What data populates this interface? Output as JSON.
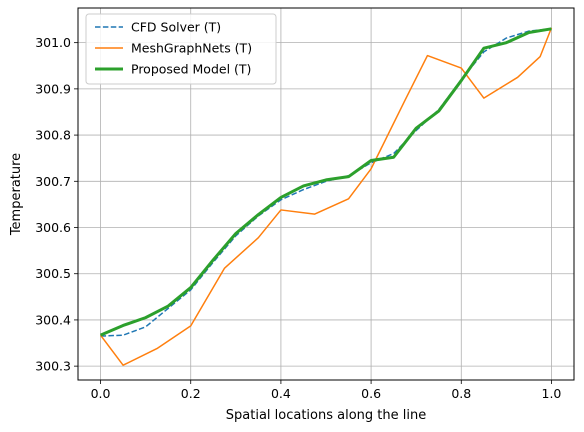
{
  "chart_data": {
    "type": "line",
    "title": "",
    "xlabel": "Spatial locations along the line",
    "ylabel": "Temperature",
    "xlim": [
      -0.05,
      1.05
    ],
    "ylim": [
      300.27,
      301.075
    ],
    "xticks": [
      0.0,
      0.2,
      0.4,
      0.6,
      0.8,
      1.0
    ],
    "xtick_labels": [
      "0.0",
      "0.2",
      "0.4",
      "0.6",
      "0.8",
      "1.0"
    ],
    "yticks": [
      300.3,
      300.4,
      300.5,
      300.6,
      300.7,
      300.8,
      300.9,
      301.0
    ],
    "ytick_labels": [
      "300.3",
      "300.4",
      "300.5",
      "300.6",
      "300.7",
      "300.8",
      "300.9",
      "301.0"
    ],
    "grid": true,
    "legend_position": "top-left",
    "series": [
      {
        "name": "CFD Solver (T)",
        "color": "#1f77b4",
        "style": "dashed",
        "width": 1.5,
        "x": [
          0.0,
          0.05,
          0.1,
          0.15,
          0.2,
          0.25,
          0.3,
          0.35,
          0.4,
          0.45,
          0.5,
          0.55,
          0.6,
          0.65,
          0.7,
          0.75,
          0.8,
          0.85,
          0.9,
          0.95,
          1.0
        ],
        "y": [
          300.365,
          300.367,
          300.385,
          300.425,
          300.465,
          300.525,
          300.582,
          300.625,
          300.66,
          300.682,
          300.7,
          300.712,
          300.74,
          300.76,
          300.81,
          300.855,
          300.92,
          300.98,
          301.01,
          301.025,
          301.03
        ]
      },
      {
        "name": "MeshGraphNets (T)",
        "color": "#ff7f0e",
        "style": "solid",
        "width": 1.5,
        "x": [
          0.0,
          0.05,
          0.125,
          0.2,
          0.275,
          0.35,
          0.4,
          0.475,
          0.55,
          0.6,
          0.675,
          0.725,
          0.8,
          0.85,
          0.925,
          0.975,
          1.0
        ],
        "y": [
          300.367,
          300.302,
          300.338,
          300.387,
          300.512,
          300.578,
          300.638,
          300.629,
          300.662,
          300.727,
          300.875,
          300.972,
          300.945,
          300.88,
          300.925,
          300.97,
          301.032
        ]
      },
      {
        "name": "Proposed Model (T)",
        "color": "#2ca02c",
        "style": "solid",
        "width": 3,
        "x": [
          0.0,
          0.05,
          0.1,
          0.15,
          0.2,
          0.25,
          0.3,
          0.35,
          0.4,
          0.45,
          0.5,
          0.55,
          0.6,
          0.65,
          0.7,
          0.75,
          0.8,
          0.85,
          0.9,
          0.95,
          1.0
        ],
        "y": [
          300.367,
          300.388,
          300.405,
          300.43,
          300.47,
          300.53,
          300.587,
          300.628,
          300.665,
          300.69,
          300.703,
          300.71,
          300.745,
          300.752,
          300.815,
          300.852,
          300.918,
          300.988,
          301.0,
          301.022,
          301.03
        ]
      }
    ]
  }
}
